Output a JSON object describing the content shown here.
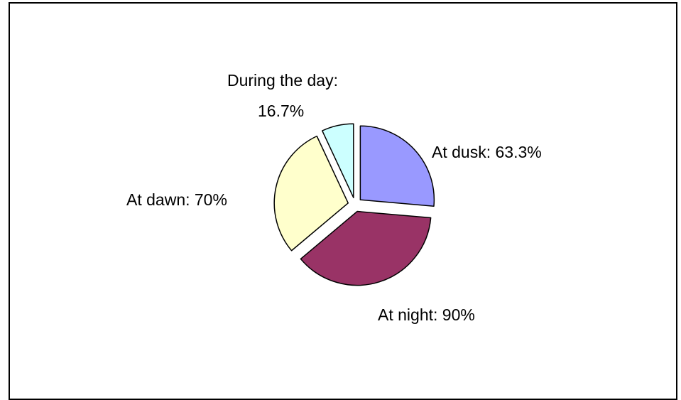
{
  "chart_data": {
    "type": "pie",
    "title": "",
    "slices": [
      {
        "label": "At dusk",
        "value_text": "63.3%",
        "value": 63.3,
        "color": "#9999ff"
      },
      {
        "label": "At night",
        "value_text": "90%",
        "value": 90,
        "color": "#993366"
      },
      {
        "label": "At dawn",
        "value_text": "70%",
        "value": 70,
        "color": "#ffffcc"
      },
      {
        "label": "During the day",
        "value_text": "16.7%",
        "value": 16.7,
        "color": "#ccffff"
      }
    ],
    "data_labels": {
      "dusk": "At dusk: 63.3%",
      "night": "At night: 90%",
      "dawn": "At dawn: 70%",
      "day_line1": "During the day:",
      "day_line2": "16.7%"
    },
    "exploded": true,
    "legend": "none"
  }
}
